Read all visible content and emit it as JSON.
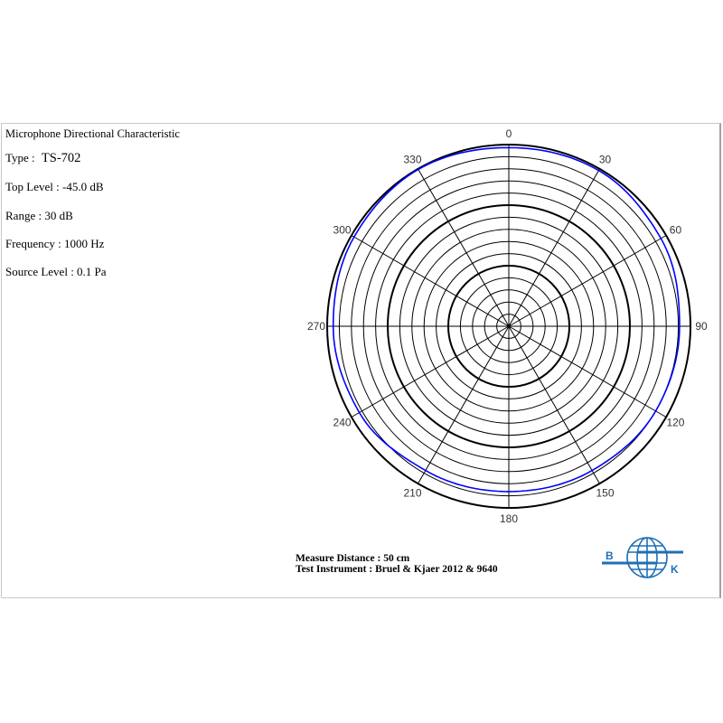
{
  "header": {
    "title": "Microphone Directional Characteristic",
    "type_label": "Type :",
    "type_value": "TS-702",
    "top_level": "Top Level : -45.0 dB",
    "range": "Range : 30 dB",
    "frequency": "Frequency : 1000 Hz",
    "source_level": "Source Level : 0.1 Pa"
  },
  "footer": {
    "measure_distance": "Measure Distance : 50 cm",
    "test_instrument": "Test Instrument : Bruel & Kjaer 2012 & 9640"
  },
  "logo": {
    "text_left": "B",
    "text_right": "K",
    "color": "#1f6fb5"
  },
  "chart_data": {
    "type": "polar",
    "title": "",
    "angle_ticks": [
      "0",
      "30",
      "60",
      "90",
      "120",
      "150",
      "180",
      "210",
      "240",
      "270",
      "300",
      "330"
    ],
    "radial_top_db": -45.0,
    "radial_range_db": 30,
    "radial_major_step_db": 10,
    "radial_minor_step_db": 2,
    "grid": true,
    "series": [
      {
        "color": "#0000ff",
        "angles": [
          0,
          30,
          60,
          90,
          120,
          150,
          180,
          210,
          240,
          270,
          300,
          330,
          360
        ],
        "values_db": [
          -45.5,
          -45.3,
          -46.0,
          -46.8,
          -47.0,
          -47.5,
          -47.7,
          -47.5,
          -46.5,
          -46.0,
          -45.5,
          -45.1,
          -45.5
        ]
      }
    ]
  }
}
